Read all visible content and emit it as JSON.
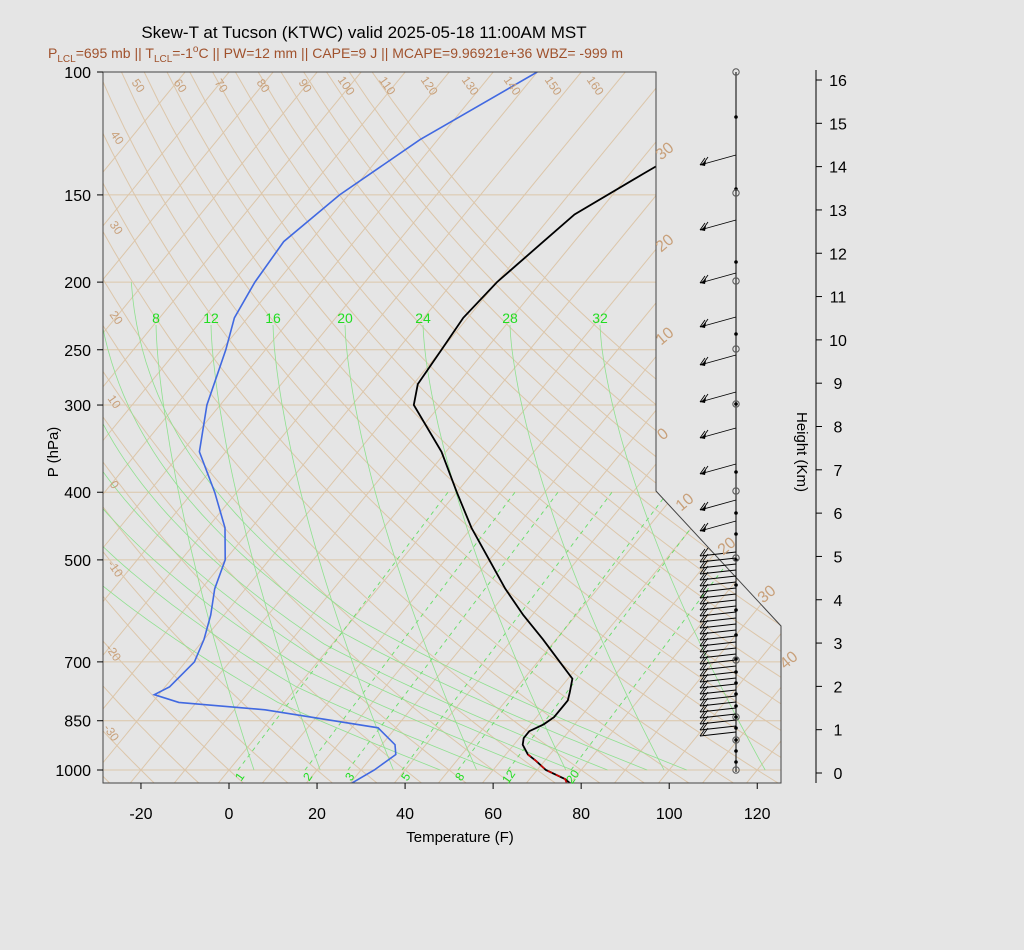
{
  "chart_data": {
    "type": "line",
    "title": "Skew-T at Tucson (KTWC) valid 2025-05-18 11:00AM MST",
    "subtitle": {
      "p_label": "P",
      "p_sub": "LCL",
      "p_val": "=695 mb || T",
      "t_sub": "LCL",
      "t_val": "=-1",
      "deg": "o",
      "rest": "C || PW=12 mm || CAPE=9 J || MCAPE=9.96921e+36 WBZ= -999 m"
    },
    "xlabel": "Temperature (F)",
    "ylabel": "P (hPa)",
    "ylabel_right": "Height (Km)",
    "x_ticks": [
      "-20",
      "0",
      "20",
      "40",
      "60",
      "80",
      "100",
      "120"
    ],
    "p_ticks": [
      "100",
      "150",
      "200",
      "250",
      "300",
      "400",
      "500",
      "700",
      "850",
      "1000"
    ],
    "height_ticks": [
      "0",
      "1",
      "2",
      "3",
      "4",
      "5",
      "6",
      "7",
      "8",
      "9",
      "10",
      "11",
      "12",
      "13",
      "14",
      "15",
      "16"
    ],
    "mixing_ratio_labels_top": [
      "8",
      "12",
      "16",
      "20",
      "24",
      "28",
      "32"
    ],
    "mixing_ratio_labels_bottom": [
      "1",
      "2",
      "3",
      "5",
      "8",
      "12",
      "20"
    ],
    "isotherm_labels": [
      "50",
      "60",
      "70",
      "80",
      "90",
      "100",
      "110",
      "120",
      "130",
      "140",
      "150",
      "160",
      "40",
      "30",
      "20",
      "10",
      "0",
      "-10",
      "-20",
      "-30"
    ],
    "wind_panel_labels": [
      "30",
      "20",
      "10",
      "0",
      "10",
      "20",
      "30",
      "40"
    ],
    "xlim": [
      -28,
      125
    ],
    "plim": [
      1050,
      100
    ],
    "series": [
      {
        "name": "Temperature",
        "color": "#000000",
        "points": [
          [
            1050,
            81
          ],
          [
            1045,
            80
          ],
          [
            1030,
            78
          ],
          [
            1000,
            72
          ],
          [
            970,
            68
          ],
          [
            950,
            65
          ],
          [
            920,
            62
          ],
          [
            900,
            61
          ],
          [
            880,
            61
          ],
          [
            860,
            63
          ],
          [
            840,
            64
          ],
          [
            815,
            64
          ],
          [
            795,
            64
          ],
          [
            775,
            63
          ],
          [
            740,
            61
          ],
          [
            700,
            55
          ],
          [
            650,
            47
          ],
          [
            600,
            38
          ],
          [
            550,
            29
          ],
          [
            500,
            20
          ],
          [
            450,
            10
          ],
          [
            400,
            0
          ],
          [
            350,
            -11
          ],
          [
            300,
            -26
          ],
          [
            280,
            -29
          ],
          [
            250,
            -30
          ],
          [
            225,
            -31
          ],
          [
            200,
            -30
          ],
          [
            175,
            -27
          ],
          [
            160,
            -25
          ],
          [
            140,
            -17
          ],
          [
            125,
            -10
          ],
          [
            110,
            -6
          ],
          [
            100,
            -6
          ]
        ]
      },
      {
        "name": "Dewpoint",
        "color": "#4169e1",
        "points": [
          [
            1050,
            30
          ],
          [
            1000,
            33
          ],
          [
            950,
            35
          ],
          [
            920,
            33
          ],
          [
            870,
            26
          ],
          [
            820,
            -3
          ],
          [
            800,
            -24
          ],
          [
            780,
            -31
          ],
          [
            760,
            -29
          ],
          [
            700,
            -28
          ],
          [
            650,
            -30
          ],
          [
            600,
            -33
          ],
          [
            550,
            -37
          ],
          [
            500,
            -40
          ],
          [
            450,
            -46
          ],
          [
            400,
            -55
          ],
          [
            350,
            -66
          ],
          [
            300,
            -73
          ],
          [
            250,
            -79
          ],
          [
            225,
            -83
          ],
          [
            200,
            -85
          ],
          [
            175,
            -86
          ],
          [
            150,
            -82
          ],
          [
            125,
            -74
          ],
          [
            100,
            -60
          ]
        ]
      }
    ],
    "parcel_trace": {
      "name": "Parcel",
      "color": "#cc0000",
      "points": [
        [
          1042,
          79
        ],
        [
          1030,
          78
        ],
        [
          1000,
          72
        ],
        [
          970,
          68
        ],
        [
          950,
          65
        ]
      ]
    },
    "winds": {
      "barb_rows": 24,
      "knots_upper_levels": [
        25,
        30,
        25,
        30,
        25,
        25,
        20,
        15,
        15,
        10,
        10
      ]
    }
  }
}
